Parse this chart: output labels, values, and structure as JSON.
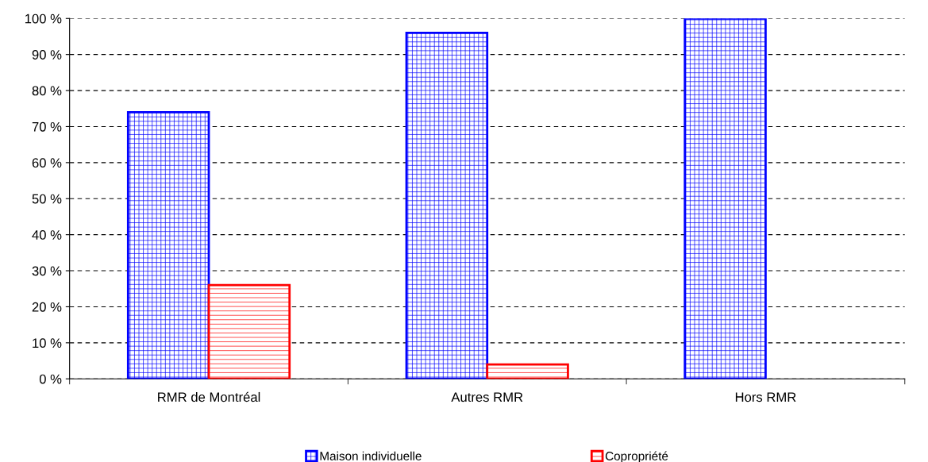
{
  "chart_data": {
    "type": "bar",
    "categories": [
      "RMR de Montréal",
      "Autres RMR",
      "Hors RMR"
    ],
    "series": [
      {
        "name": "Maison individuelle",
        "color": "#0000ff",
        "values": [
          74,
          96,
          100
        ]
      },
      {
        "name": "Copropriété",
        "color": "#ff0000",
        "values": [
          26,
          4,
          null
        ]
      }
    ],
    "ylim": [
      0,
      100
    ],
    "yticks": [
      {
        "value": 0,
        "label": "0 %"
      },
      {
        "value": 10,
        "label": "10 %"
      },
      {
        "value": 20,
        "label": "20 %"
      },
      {
        "value": 30,
        "label": "30 %"
      },
      {
        "value": 40,
        "label": "40 %"
      },
      {
        "value": 50,
        "label": "50 %"
      },
      {
        "value": 60,
        "label": "60 %"
      },
      {
        "value": 70,
        "label": "70 %"
      },
      {
        "value": 80,
        "label": "80 %"
      },
      {
        "value": 90,
        "label": "90 %"
      },
      {
        "value": 100,
        "label": "100 %"
      }
    ],
    "grid": "y",
    "legend": "bottom"
  }
}
